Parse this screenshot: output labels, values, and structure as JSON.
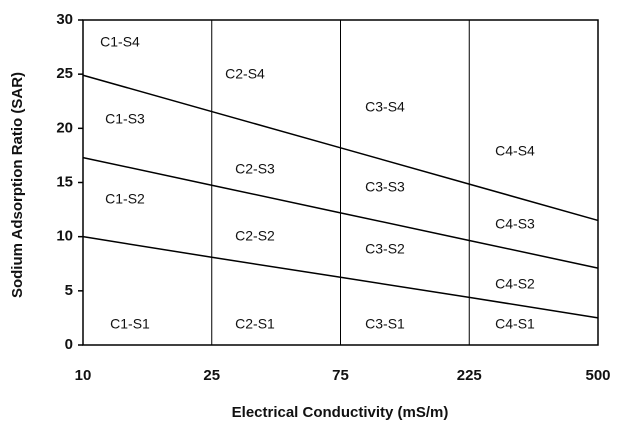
{
  "chart_data": {
    "type": "line",
    "x_label": "Electrical Conductivity (mS/m)",
    "y_label": "Sodium Adsorption Ratio (SAR)",
    "categories": [
      "10",
      "25",
      "75",
      "225",
      "500"
    ],
    "series": [
      {
        "color": "#000000",
        "values": [
          24.9,
          21.55,
          18.2,
          14.85,
          11.5
        ]
      },
      {
        "color": "#000000",
        "values": [
          17.3,
          14.75,
          12.2,
          9.65,
          7.1
        ]
      },
      {
        "color": "#000000",
        "values": [
          10,
          8.1,
          6.25,
          4.4,
          2.5
        ]
      }
    ],
    "ylim": [
      0,
      30
    ],
    "yticks": [
      0,
      5,
      10,
      15,
      20,
      25,
      30
    ],
    "xgrid": true,
    "annotations": [
      "C1-S4",
      "C1-S3",
      "C1-S2",
      "C1-S1",
      "C2-S4",
      "C2-S3",
      "C2-S2",
      "C2-S1",
      "C3-S4",
      "C3-S3",
      "C3-S2",
      "C3-S1",
      "C4-S4",
      "C4-S3",
      "C4-S2",
      "C4-S1"
    ]
  }
}
